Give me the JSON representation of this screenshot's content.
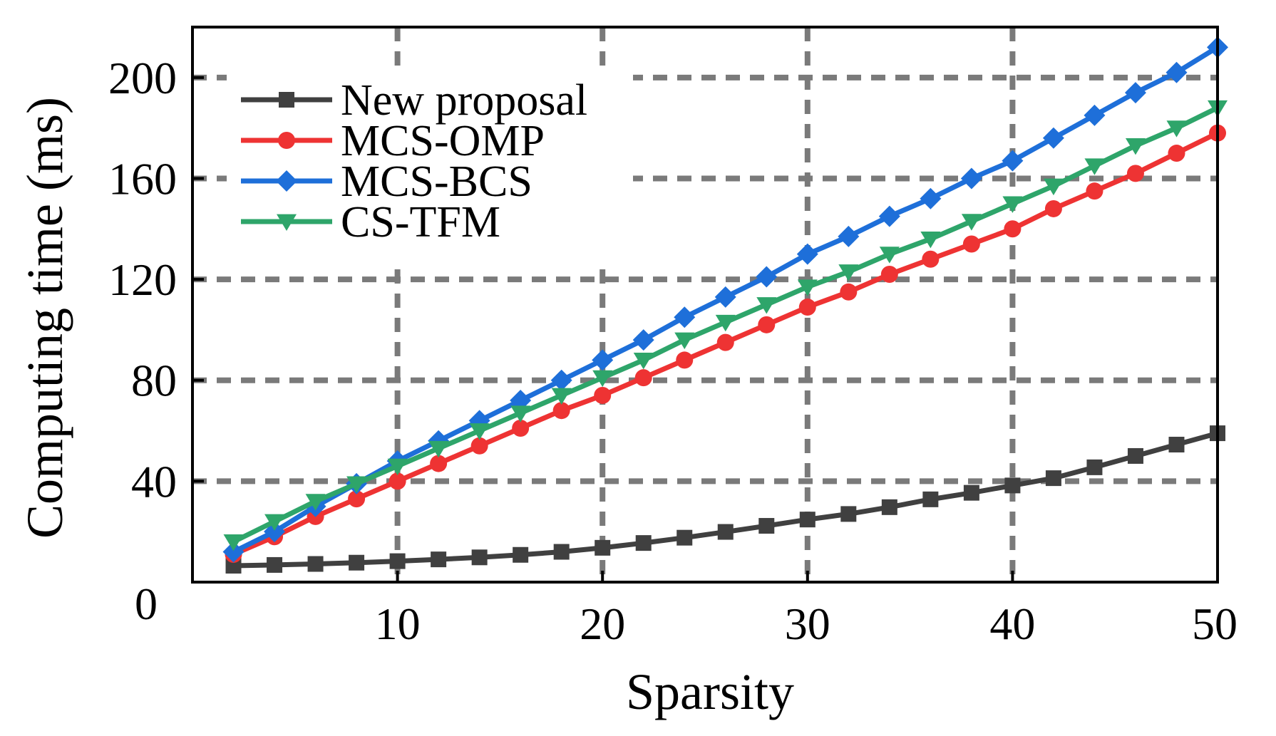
{
  "chart_data": {
    "type": "line",
    "title": "",
    "xlabel": "Sparsity",
    "ylabel": "Computing time (ms)",
    "xlim": [
      0,
      50
    ],
    "ylim": [
      0,
      220
    ],
    "grid": true,
    "legend_position": "top-left",
    "x_ticks": [
      10,
      20,
      30,
      40,
      50
    ],
    "x_tick_labels": [
      "10",
      "20",
      "30",
      "40",
      "50"
    ],
    "y_ticks": [
      0,
      40,
      80,
      120,
      160,
      200
    ],
    "y_tick_labels": [
      "0",
      "40",
      "80",
      "120",
      "160",
      "200"
    ],
    "x": [
      2,
      4,
      6,
      8,
      10,
      12,
      14,
      16,
      18,
      20,
      22,
      24,
      26,
      28,
      30,
      32,
      34,
      36,
      38,
      40,
      42,
      44,
      46,
      48,
      50
    ],
    "series": [
      {
        "name": "New proposal",
        "color": "#404040",
        "marker": "square",
        "values": [
          6.5,
          6.8,
          7.2,
          7.7,
          8.3,
          9.0,
          9.8,
          10.8,
          12.0,
          13.6,
          15.5,
          17.6,
          19.9,
          22.3,
          24.8,
          27.0,
          29.7,
          32.8,
          35.4,
          38.3,
          41.2,
          45.5,
          50.0,
          54.5,
          59.0
        ]
      },
      {
        "name": "MCS-OMP",
        "color": "#ee3333",
        "marker": "circle",
        "values": [
          11.0,
          18.0,
          26.0,
          33.0,
          40.0,
          47.0,
          54.0,
          61.0,
          68.0,
          74.0,
          81.0,
          88.0,
          95.0,
          102.0,
          109.0,
          115.0,
          122.0,
          128.0,
          134.0,
          140.0,
          148.0,
          155.0,
          162.0,
          170.0,
          178.0
        ]
      },
      {
        "name": "MCS-BCS",
        "color": "#1e6fd9",
        "marker": "diamond",
        "values": [
          12.0,
          20.0,
          30.0,
          39.0,
          48.0,
          56.0,
          64.0,
          72.0,
          80.0,
          88.0,
          96.0,
          105.0,
          113.0,
          121.0,
          130.0,
          137.0,
          145.0,
          152.0,
          160.0,
          167.0,
          176.0,
          185.0,
          194.0,
          202.0,
          212.0
        ]
      },
      {
        "name": "CS-TFM",
        "color": "#2ea56a",
        "marker": "triangle-down",
        "values": [
          16.0,
          24.0,
          32.0,
          39.0,
          46.0,
          53.0,
          60.0,
          67.0,
          74.0,
          81.0,
          88.0,
          96.0,
          103.0,
          110.0,
          117.0,
          123.0,
          130.0,
          136.0,
          143.0,
          150.0,
          157.0,
          165.0,
          173.0,
          180.0,
          188.0
        ]
      }
    ]
  }
}
